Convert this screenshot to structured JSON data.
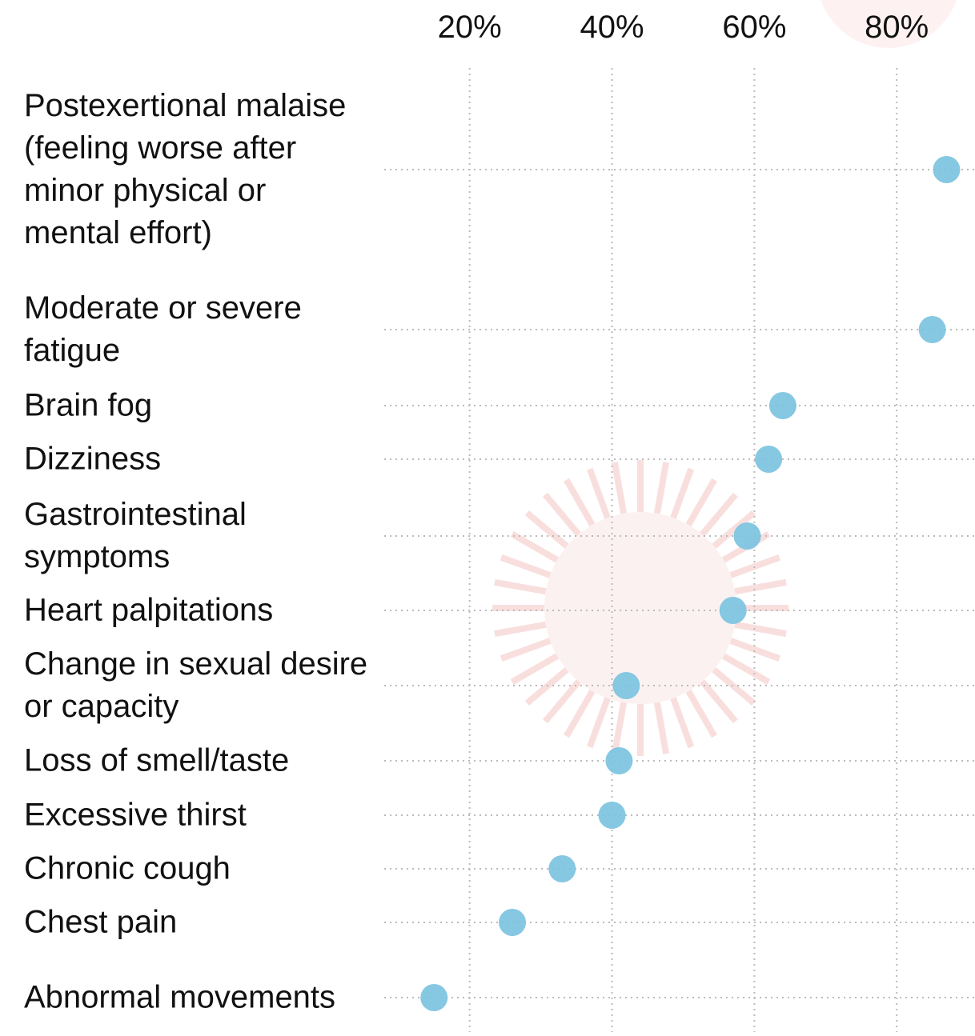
{
  "chart_data": {
    "type": "dot",
    "categories": [
      "Postexertional malaise (feeling worse after minor physical or mental effort)",
      "Moderate or severe fatigue",
      "Brain fog",
      "Dizziness",
      "Gastrointestinal symptoms",
      "Heart palpitations",
      "Change in sexual desire or capacity",
      "Loss of smell/taste",
      "Excessive thirst",
      "Chronic cough",
      "Chest pain",
      "Abnormal movements"
    ],
    "values": [
      87,
      85,
      64,
      62,
      59,
      57,
      42,
      41,
      40,
      33,
      26,
      15
    ],
    "color": "#7cc3df",
    "xlim": [
      8,
      91
    ],
    "xticks": [
      {
        "value": 20,
        "label": "20%"
      },
      {
        "value": 40,
        "label": "40%"
      },
      {
        "value": 60,
        "label": "60%"
      },
      {
        "value": 80,
        "label": "80%"
      }
    ],
    "grid": true
  }
}
